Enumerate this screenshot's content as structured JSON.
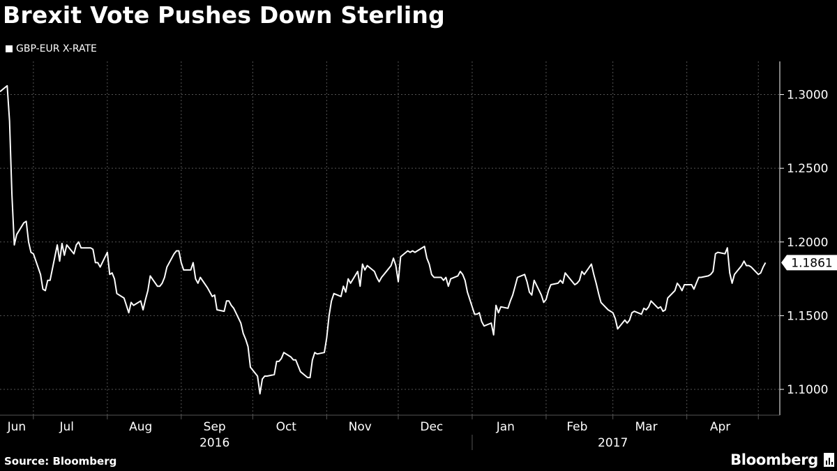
{
  "title": "Brexit Vote Pushes Down Sterling",
  "source": "Source: Bloomberg",
  "brand": "Bloomberg",
  "colors": {
    "background": "#000000",
    "line": "#ffffff",
    "grid": "#555555"
  },
  "chart_data": {
    "type": "line",
    "title": "Brexit Vote Pushes Down Sterling",
    "xlabel": "",
    "ylabel": "",
    "legend": {
      "placement": "top-left"
    },
    "grid": true,
    "ylim": [
      1.0825,
      1.3225
    ],
    "xlim": [
      "2016-06-17",
      "2017-05-10"
    ],
    "y_ticks": [
      "1.1000",
      "1.1500",
      "1.2000",
      "1.2500",
      "1.3000"
    ],
    "x_month_labels": [
      {
        "label": "Jun",
        "date": "2016-06-24"
      },
      {
        "label": "Jul",
        "date": "2016-07-15"
      },
      {
        "label": "Aug",
        "date": "2016-08-15"
      },
      {
        "label": "Sep",
        "date": "2016-09-15"
      },
      {
        "label": "Oct",
        "date": "2016-10-15"
      },
      {
        "label": "Nov",
        "date": "2016-11-15"
      },
      {
        "label": "Dec",
        "date": "2016-12-15"
      },
      {
        "label": "Jan",
        "date": "2017-01-15"
      },
      {
        "label": "Feb",
        "date": "2017-02-14"
      },
      {
        "label": "Mar",
        "date": "2017-03-15"
      },
      {
        "label": "Apr",
        "date": "2017-04-15"
      }
    ],
    "x_month_boundaries": [
      "2016-07-01",
      "2016-08-01",
      "2016-09-01",
      "2016-10-01",
      "2016-11-01",
      "2016-12-01",
      "2017-01-01",
      "2017-02-01",
      "2017-03-01",
      "2017-04-01",
      "2017-05-01"
    ],
    "x_year_labels": [
      {
        "label": "2016",
        "date": "2016-09-15"
      },
      {
        "label": "2017",
        "date": "2017-03-01"
      }
    ],
    "year_separator": "2017-01-01",
    "last_value_label": "1.1861",
    "series": [
      {
        "name": "GBP-EUR X-RATE",
        "x": [
          "2016-06-17",
          "2016-06-20",
          "2016-06-21",
          "2016-06-22",
          "2016-06-23",
          "2016-06-24",
          "2016-06-27",
          "2016-06-28",
          "2016-06-29",
          "2016-06-30",
          "2016-07-01",
          "2016-07-04",
          "2016-07-05",
          "2016-07-06",
          "2016-07-07",
          "2016-07-08",
          "2016-07-11",
          "2016-07-12",
          "2016-07-13",
          "2016-07-14",
          "2016-07-15",
          "2016-07-18",
          "2016-07-19",
          "2016-07-20",
          "2016-07-21",
          "2016-07-22",
          "2016-07-25",
          "2016-07-26",
          "2016-07-27",
          "2016-07-28",
          "2016-07-29",
          "2016-08-01",
          "2016-08-02",
          "2016-08-03",
          "2016-08-04",
          "2016-08-05",
          "2016-08-08",
          "2016-08-09",
          "2016-08-10",
          "2016-08-11",
          "2016-08-12",
          "2016-08-15",
          "2016-08-16",
          "2016-08-17",
          "2016-08-18",
          "2016-08-19",
          "2016-08-22",
          "2016-08-23",
          "2016-08-24",
          "2016-08-25",
          "2016-08-26",
          "2016-08-29",
          "2016-08-30",
          "2016-08-31",
          "2016-09-01",
          "2016-09-02",
          "2016-09-05",
          "2016-09-06",
          "2016-09-07",
          "2016-09-08",
          "2016-09-09",
          "2016-09-12",
          "2016-09-13",
          "2016-09-14",
          "2016-09-15",
          "2016-09-16",
          "2016-09-19",
          "2016-09-20",
          "2016-09-21",
          "2016-09-22",
          "2016-09-23",
          "2016-09-26",
          "2016-09-27",
          "2016-09-28",
          "2016-09-29",
          "2016-09-30",
          "2016-10-03",
          "2016-10-04",
          "2016-10-05",
          "2016-10-06",
          "2016-10-07",
          "2016-10-10",
          "2016-10-11",
          "2016-10-12",
          "2016-10-13",
          "2016-10-14",
          "2016-10-17",
          "2016-10-18",
          "2016-10-19",
          "2016-10-20",
          "2016-10-21",
          "2016-10-24",
          "2016-10-25",
          "2016-10-26",
          "2016-10-27",
          "2016-10-28",
          "2016-10-31",
          "2016-11-01",
          "2016-11-02",
          "2016-11-03",
          "2016-11-04",
          "2016-11-07",
          "2016-11-08",
          "2016-11-09",
          "2016-11-10",
          "2016-11-11",
          "2016-11-14",
          "2016-11-15",
          "2016-11-16",
          "2016-11-17",
          "2016-11-18",
          "2016-11-21",
          "2016-11-22",
          "2016-11-23",
          "2016-11-24",
          "2016-11-25",
          "2016-11-28",
          "2016-11-29",
          "2016-11-30",
          "2016-12-01",
          "2016-12-02",
          "2016-12-05",
          "2016-12-06",
          "2016-12-07",
          "2016-12-08",
          "2016-12-09",
          "2016-12-12",
          "2016-12-13",
          "2016-12-14",
          "2016-12-15",
          "2016-12-16",
          "2016-12-19",
          "2016-12-20",
          "2016-12-21",
          "2016-12-22",
          "2016-12-23",
          "2016-12-26",
          "2016-12-27",
          "2016-12-28",
          "2016-12-29",
          "2016-12-30",
          "2017-01-02",
          "2017-01-03",
          "2017-01-04",
          "2017-01-05",
          "2017-01-06",
          "2017-01-09",
          "2017-01-10",
          "2017-01-11",
          "2017-01-12",
          "2017-01-13",
          "2017-01-16",
          "2017-01-17",
          "2017-01-18",
          "2017-01-19",
          "2017-01-20",
          "2017-01-23",
          "2017-01-24",
          "2017-01-25",
          "2017-01-26",
          "2017-01-27",
          "2017-01-30",
          "2017-01-31",
          "2017-02-01",
          "2017-02-02",
          "2017-02-03",
          "2017-02-06",
          "2017-02-07",
          "2017-02-08",
          "2017-02-09",
          "2017-02-10",
          "2017-02-13",
          "2017-02-14",
          "2017-02-15",
          "2017-02-16",
          "2017-02-17",
          "2017-02-20",
          "2017-02-21",
          "2017-02-22",
          "2017-02-23",
          "2017-02-24",
          "2017-02-27",
          "2017-02-28",
          "2017-03-01",
          "2017-03-02",
          "2017-03-03",
          "2017-03-06",
          "2017-03-07",
          "2017-03-08",
          "2017-03-09",
          "2017-03-10",
          "2017-03-13",
          "2017-03-14",
          "2017-03-15",
          "2017-03-16",
          "2017-03-17",
          "2017-03-20",
          "2017-03-21",
          "2017-03-22",
          "2017-03-23",
          "2017-03-24",
          "2017-03-27",
          "2017-03-28",
          "2017-03-29",
          "2017-03-30",
          "2017-03-31",
          "2017-04-03",
          "2017-04-04",
          "2017-04-05",
          "2017-04-06",
          "2017-04-07",
          "2017-04-10",
          "2017-04-11",
          "2017-04-12",
          "2017-04-13",
          "2017-04-14",
          "2017-04-17",
          "2017-04-18",
          "2017-04-19",
          "2017-04-20",
          "2017-04-21",
          "2017-04-24",
          "2017-04-25",
          "2017-04-26",
          "2017-04-27",
          "2017-04-28",
          "2017-05-01",
          "2017-05-02",
          "2017-05-03",
          "2017-05-04"
        ],
        "y": [
          1.302,
          1.306,
          1.282,
          1.232,
          1.198,
          1.205,
          1.213,
          1.214,
          1.2,
          1.193,
          1.192,
          1.178,
          1.168,
          1.167,
          1.174,
          1.174,
          1.198,
          1.187,
          1.199,
          1.191,
          1.198,
          1.192,
          1.198,
          1.2,
          1.196,
          1.196,
          1.196,
          1.195,
          1.186,
          1.186,
          1.183,
          1.193,
          1.178,
          1.179,
          1.175,
          1.165,
          1.162,
          1.157,
          1.152,
          1.159,
          1.157,
          1.16,
          1.154,
          1.161,
          1.167,
          1.177,
          1.17,
          1.17,
          1.172,
          1.176,
          1.183,
          1.192,
          1.194,
          1.194,
          1.186,
          1.181,
          1.181,
          1.186,
          1.175,
          1.172,
          1.176,
          1.169,
          1.166,
          1.163,
          1.164,
          1.154,
          1.153,
          1.16,
          1.16,
          1.157,
          1.155,
          1.145,
          1.138,
          1.134,
          1.129,
          1.115,
          1.109,
          1.097,
          1.107,
          1.109,
          1.109,
          1.11,
          1.119,
          1.119,
          1.121,
          1.125,
          1.122,
          1.12,
          1.12,
          1.116,
          1.112,
          1.108,
          1.108,
          1.12,
          1.125,
          1.124,
          1.125,
          1.135,
          1.15,
          1.16,
          1.165,
          1.163,
          1.17,
          1.166,
          1.175,
          1.172,
          1.18,
          1.17,
          1.185,
          1.181,
          1.184,
          1.18,
          1.176,
          1.173,
          1.176,
          1.178,
          1.184,
          1.189,
          1.184,
          1.173,
          1.19,
          1.194,
          1.193,
          1.194,
          1.193,
          1.194,
          1.197,
          1.189,
          1.185,
          1.178,
          1.176,
          1.176,
          1.174,
          1.176,
          1.17,
          1.175,
          1.177,
          1.18,
          1.178,
          1.174,
          1.166,
          1.151,
          1.151,
          1.152,
          1.146,
          1.143,
          1.145,
          1.137,
          1.157,
          1.152,
          1.156,
          1.155,
          1.16,
          1.164,
          1.17,
          1.176,
          1.178,
          1.173,
          1.166,
          1.164,
          1.174,
          1.164,
          1.159,
          1.161,
          1.167,
          1.171,
          1.172,
          1.174,
          1.172,
          1.179,
          1.177,
          1.171,
          1.172,
          1.174,
          1.18,
          1.178,
          1.185,
          1.178,
          1.172,
          1.165,
          1.159,
          1.154,
          1.153,
          1.152,
          1.148,
          1.141,
          1.147,
          1.145,
          1.147,
          1.152,
          1.153,
          1.151,
          1.155,
          1.154,
          1.156,
          1.16,
          1.155,
          1.156,
          1.153,
          1.154,
          1.162,
          1.167,
          1.172,
          1.17,
          1.167,
          1.171,
          1.171,
          1.168,
          1.172,
          1.176,
          1.176,
          1.177,
          1.178,
          1.18,
          1.192,
          1.193,
          1.192,
          1.196,
          1.179,
          1.172,
          1.178,
          1.184,
          1.187,
          1.184,
          1.184,
          1.183,
          1.178,
          1.179,
          1.183,
          1.186
        ]
      }
    ]
  }
}
